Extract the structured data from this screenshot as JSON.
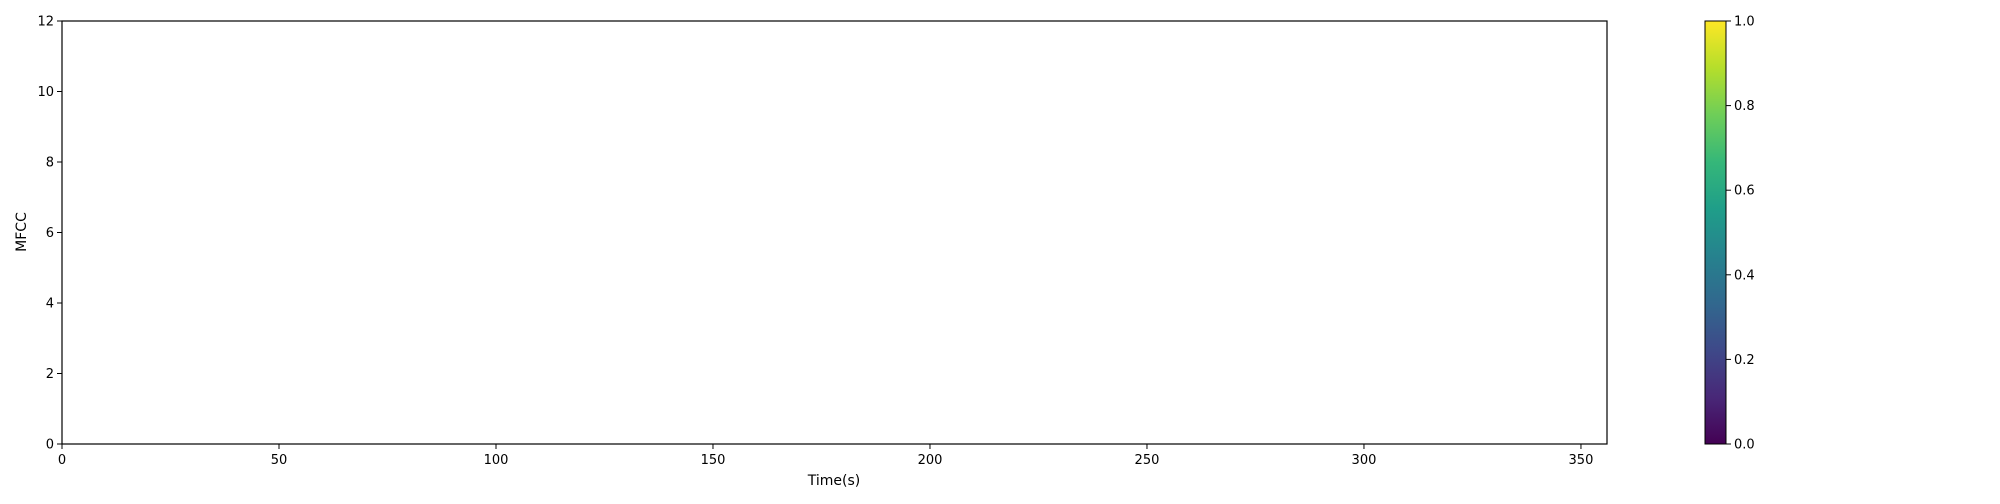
{
  "chart_data": {
    "type": "heatmap",
    "title": "",
    "xlabel": "Time(s)",
    "ylabel": "MFCC",
    "xlim": [
      0,
      356
    ],
    "ylim": [
      0,
      12
    ],
    "x_ticks": [
      0,
      50,
      100,
      150,
      200,
      250,
      300,
      350
    ],
    "y_ticks": [
      0,
      2,
      4,
      6,
      8,
      10,
      12
    ],
    "values": [],
    "grid": false,
    "colorbar": {
      "colormap": "viridis",
      "range": [
        0.0,
        1.0
      ],
      "ticks": [
        "0.0",
        "0.2",
        "0.4",
        "0.6",
        "0.8",
        "1.0"
      ],
      "colors": [
        "#440154",
        "#482878",
        "#3e4989",
        "#31688e",
        "#26828e",
        "#1f9e89",
        "#35b779",
        "#6ece58",
        "#b5de2b",
        "#fde725"
      ]
    }
  },
  "colors": {
    "axis": "#000000",
    "background": "#ffffff"
  }
}
